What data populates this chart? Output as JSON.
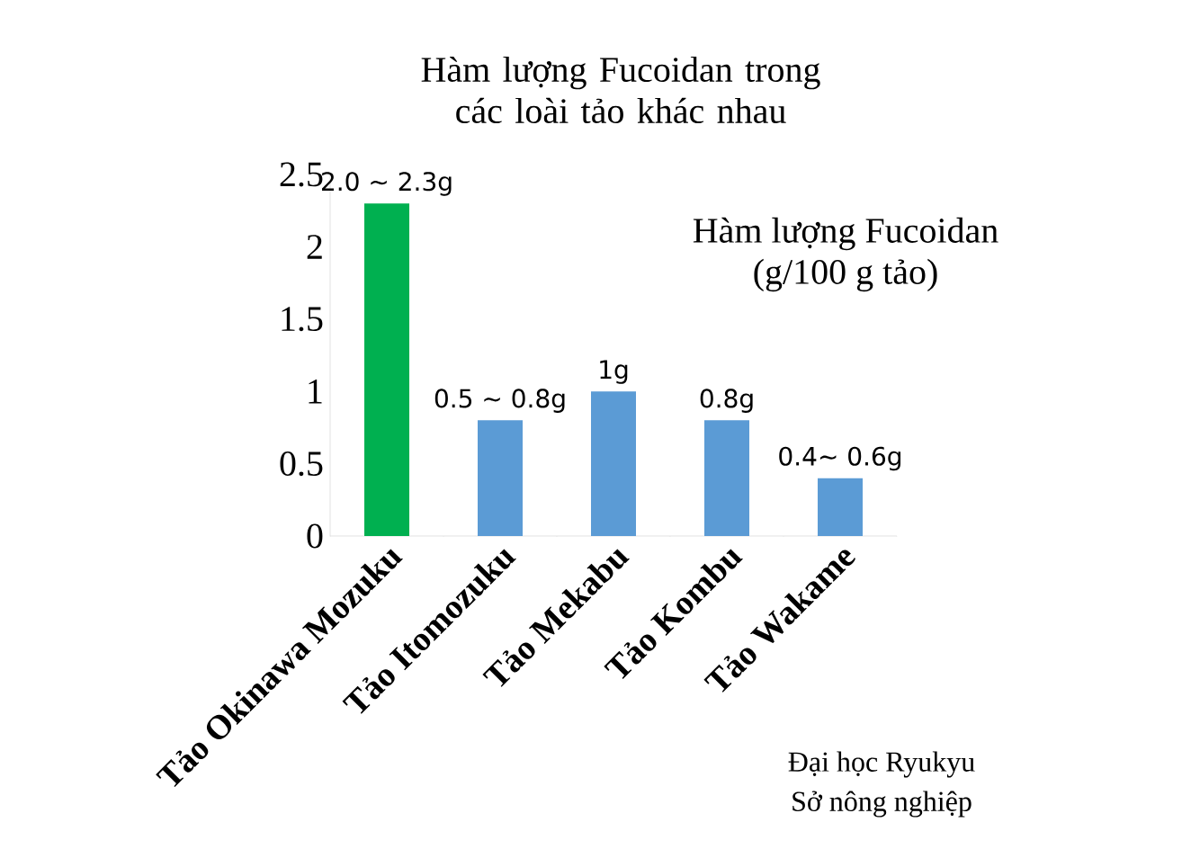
{
  "chart_data": {
    "type": "bar",
    "title": "Hàm lượng Fucoidan trong các loài tảo khác nhau",
    "categories": [
      "Tảo Okinawa Mozuku",
      "Tảo Itomozuku",
      "Tảo Mekabu",
      "Tảo Kombu",
      "Tảo Wakame"
    ],
    "values": [
      2.3,
      0.8,
      1.0,
      0.8,
      0.4
    ],
    "value_labels": [
      "2.0 ~ 2.3g",
      "0.5 ~ 0.8g",
      "1g",
      "0.8g",
      "0.4~ 0.6g"
    ],
    "colors": [
      "#00b050",
      "#5b9bd5",
      "#5b9bd5",
      "#5b9bd5",
      "#5b9bd5"
    ],
    "ylim": [
      0,
      2.5
    ],
    "yticks": [
      0,
      0.5,
      1,
      1.5,
      2,
      2.5
    ],
    "annotations": [
      "Hàm  lượng Fucoidan",
      "(g/100 g tảo)",
      "Đại học Ryukyu",
      "Sở nông nghiệp"
    ]
  }
}
